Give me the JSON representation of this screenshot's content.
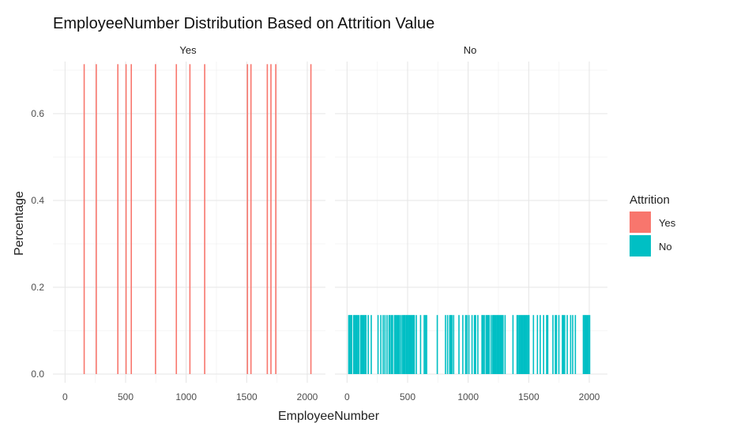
{
  "chart_data": {
    "type": "bar",
    "title": "EmployeeNumber Distribution Based on Attrition Value",
    "xlabel": "EmployeeNumber",
    "ylabel": "Percentage",
    "xlim": [
      -100,
      2150
    ],
    "ylim": [
      -0.02,
      0.72
    ],
    "x_ticks": [
      0,
      500,
      1000,
      1500,
      2000
    ],
    "y_ticks": [
      0.0,
      0.2,
      0.4,
      0.6
    ],
    "y_tick_labels": [
      "0.0",
      "0.2",
      "0.4",
      "0.6"
    ],
    "grid": true,
    "legend": {
      "title": "Attrition",
      "position": "right",
      "entries": [
        {
          "label": "Yes",
          "color": "#F8766D"
        },
        {
          "label": "No",
          "color": "#00BFC4"
        }
      ]
    },
    "facets": [
      {
        "strip_label": "Yes",
        "color": "#F8766D",
        "bar_height": 0.714,
        "x": [
          158,
          258,
          436,
          504,
          547,
          747,
          919,
          1031,
          1153,
          1506,
          1535,
          1670,
          1700,
          1740,
          2030
        ]
      },
      {
        "strip_label": "No",
        "color": "#00BFC4",
        "bar_height": 0.136,
        "x": [
          14,
          22,
          30,
          39,
          55,
          63,
          72,
          80,
          88,
          98,
          113,
          121,
          130,
          138,
          147,
          156,
          175,
          200,
          256,
          279,
          298,
          313,
          330,
          347,
          355,
          367,
          376,
          392,
          400,
          410,
          420,
          430,
          442,
          455,
          464,
          472,
          480,
          490,
          497,
          506,
          514,
          522,
          530,
          538,
          547,
          555,
          572,
          607,
          637,
          647,
          657,
          745,
          813,
          830,
          848,
          857,
          866,
          880,
          924,
          956,
          979,
          990,
          1006,
          1032,
          1052,
          1061,
          1080,
          1114,
          1123,
          1133,
          1148,
          1157,
          1165,
          1174,
          1190,
          1203,
          1212,
          1220,
          1228,
          1237,
          1245,
          1253,
          1262,
          1271,
          1279,
          1288,
          1305,
          1370,
          1404,
          1413,
          1423,
          1432,
          1441,
          1450,
          1460,
          1468,
          1477,
          1485,
          1494,
          1502,
          1539,
          1572,
          1595,
          1623,
          1648,
          1657,
          1700,
          1720,
          1729,
          1749,
          1778,
          1786,
          1797,
          1818,
          1846,
          1863,
          1885,
          1951,
          1960,
          1968,
          1976,
          1985,
          1993,
          2003
        ]
      }
    ]
  }
}
